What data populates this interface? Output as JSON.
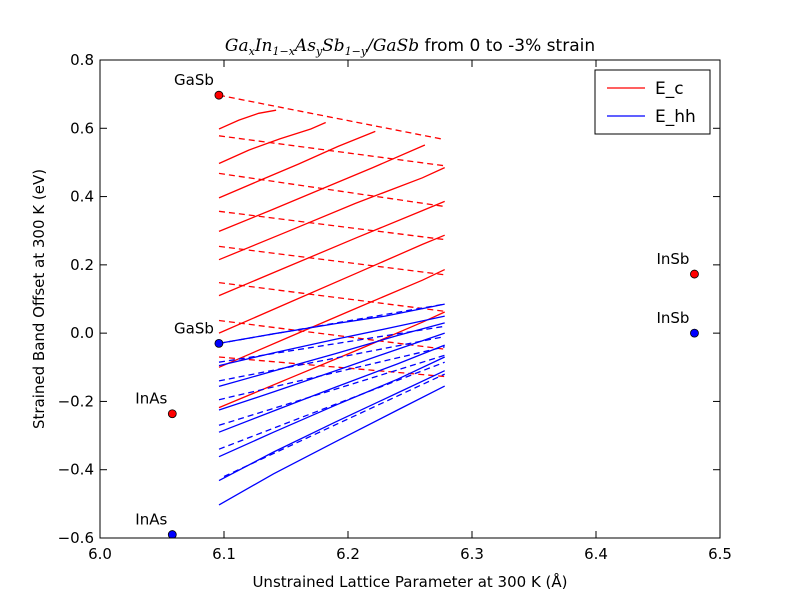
{
  "chart_data": {
    "type": "line",
    "title_math": "Ga",
    "title": {
      "parts": [
        {
          "text": "Ga",
          "style": "italic"
        },
        {
          "text": "x",
          "style": "sub"
        },
        {
          "text": "In",
          "style": "italic"
        },
        {
          "text": "1−x",
          "style": "sub"
        },
        {
          "text": "As",
          "style": "italic"
        },
        {
          "text": "y",
          "style": "sub"
        },
        {
          "text": "Sb",
          "style": "italic"
        },
        {
          "text": "1−y",
          "style": "sub"
        },
        {
          "text": "/GaSb",
          "style": "italic"
        },
        {
          "text": " from 0 to -3% strain",
          "style": "normal"
        }
      ]
    },
    "xlabel": "Unstrained Lattice Parameter at 300 K (Å)",
    "ylabel": "Strained Band Offset at 300 K (eV)",
    "xlim": [
      6.0,
      6.5
    ],
    "ylim": [
      -0.6,
      0.8
    ],
    "xticks": [
      "6.0",
      "6.1",
      "6.2",
      "6.3",
      "6.4",
      "6.5"
    ],
    "yticks": [
      "−0.6",
      "−0.4",
      "−0.2",
      "0.0",
      "0.2",
      "0.4",
      "0.6",
      "0.8"
    ],
    "grid": false,
    "legend": {
      "placement": "top-right",
      "entries": [
        {
          "label": "E_c",
          "color": "#ff0000"
        },
        {
          "label": "E_hh",
          "color": "#0000ff"
        }
      ]
    },
    "colors": {
      "ec": "#ff0000",
      "ehh": "#0000ff"
    },
    "points": [
      {
        "label": "GaSb",
        "x": 6.0959,
        "y": 0.697,
        "color": "#ff0000",
        "anchor": "left-above"
      },
      {
        "label": "GaSb",
        "x": 6.0959,
        "y": -0.03,
        "color": "#0000ff",
        "anchor": "left-above"
      },
      {
        "label": "InAs",
        "x": 6.0583,
        "y": -0.236,
        "color": "#ff0000",
        "anchor": "left-above"
      },
      {
        "label": "InAs",
        "x": 6.0583,
        "y": -0.59,
        "color": "#0000ff",
        "anchor": "left-above"
      },
      {
        "label": "InSb",
        "x": 6.4794,
        "y": 0.173,
        "color": "#ff0000",
        "anchor": "left-above"
      },
      {
        "label": "InSb",
        "x": 6.4794,
        "y": 0.0,
        "color": "#0000ff",
        "anchor": "left-above"
      }
    ],
    "series": [
      {
        "group": "ec",
        "dashed": false,
        "x": [
          6.096,
          6.112,
          6.128,
          6.142
        ],
        "y": [
          0.598,
          0.624,
          0.644,
          0.653
        ]
      },
      {
        "group": "ec",
        "dashed": false,
        "x": [
          6.096,
          6.12,
          6.145,
          6.17,
          6.182
        ],
        "y": [
          0.497,
          0.536,
          0.569,
          0.598,
          0.617
        ]
      },
      {
        "group": "ec",
        "dashed": false,
        "x": [
          6.096,
          6.128,
          6.16,
          6.192,
          6.222
        ],
        "y": [
          0.396,
          0.446,
          0.495,
          0.547,
          0.591
        ]
      },
      {
        "group": "ec",
        "dashed": false,
        "x": [
          6.096,
          6.137,
          6.178,
          6.22,
          6.262
        ],
        "y": [
          0.298,
          0.359,
          0.421,
          0.485,
          0.551
        ]
      },
      {
        "group": "ec",
        "dashed": false,
        "x": [
          6.096,
          6.151,
          6.206,
          6.26,
          6.278
        ],
        "y": [
          0.215,
          0.297,
          0.38,
          0.455,
          0.485
        ]
      },
      {
        "group": "ec",
        "dashed": false,
        "x": [
          6.096,
          6.151,
          6.206,
          6.26,
          6.278
        ],
        "y": [
          0.11,
          0.194,
          0.278,
          0.359,
          0.386
        ]
      },
      {
        "group": "ec",
        "dashed": false,
        "x": [
          6.096,
          6.151,
          6.206,
          6.26,
          6.278
        ],
        "y": [
          0.0,
          0.087,
          0.174,
          0.26,
          0.287
        ]
      },
      {
        "group": "ec",
        "dashed": false,
        "x": [
          6.096,
          6.151,
          6.206,
          6.26,
          6.278
        ],
        "y": [
          -0.1,
          -0.014,
          0.072,
          0.155,
          0.186
        ]
      },
      {
        "group": "ec",
        "dashed": false,
        "x": [
          6.096,
          6.151,
          6.206,
          6.26,
          6.278
        ],
        "y": [
          -0.218,
          -0.135,
          -0.052,
          0.032,
          0.062
        ]
      },
      {
        "group": "ec",
        "dashed": true,
        "x": [
          6.096,
          6.278
        ],
        "y": [
          0.697,
          0.567
        ]
      },
      {
        "group": "ec",
        "dashed": true,
        "x": [
          6.096,
          6.278
        ],
        "y": [
          0.578,
          0.49
        ]
      },
      {
        "group": "ec",
        "dashed": true,
        "x": [
          6.096,
          6.278
        ],
        "y": [
          0.468,
          0.371
        ]
      },
      {
        "group": "ec",
        "dashed": true,
        "x": [
          6.096,
          6.278
        ],
        "y": [
          0.357,
          0.274
        ]
      },
      {
        "group": "ec",
        "dashed": true,
        "x": [
          6.096,
          6.278
        ],
        "y": [
          0.254,
          0.171
        ]
      },
      {
        "group": "ec",
        "dashed": true,
        "x": [
          6.096,
          6.278
        ],
        "y": [
          0.148,
          0.064
        ]
      },
      {
        "group": "ec",
        "dashed": true,
        "x": [
          6.096,
          6.278
        ],
        "y": [
          0.037,
          -0.047
        ]
      },
      {
        "group": "ec",
        "dashed": true,
        "x": [
          6.096,
          6.278
        ],
        "y": [
          -0.07,
          -0.127
        ]
      },
      {
        "group": "ehh",
        "dashed": false,
        "x": [
          6.096,
          6.14,
          6.19,
          6.23,
          6.278
        ],
        "y": [
          -0.03,
          -0.002,
          0.028,
          0.05,
          0.085
        ]
      },
      {
        "group": "ehh",
        "dashed": false,
        "x": [
          6.096,
          6.14,
          6.19,
          6.24,
          6.278
        ],
        "y": [
          -0.095,
          -0.058,
          -0.018,
          0.02,
          0.05
        ]
      },
      {
        "group": "ehh",
        "dashed": false,
        "x": [
          6.096,
          6.14,
          6.19,
          6.24,
          6.278
        ],
        "y": [
          -0.156,
          -0.111,
          -0.06,
          -0.007,
          0.03
        ]
      },
      {
        "group": "ehh",
        "dashed": false,
        "x": [
          6.096,
          6.14,
          6.19,
          6.24,
          6.278
        ],
        "y": [
          -0.225,
          -0.172,
          -0.11,
          -0.047,
          0.0
        ]
      },
      {
        "group": "ehh",
        "dashed": false,
        "x": [
          6.096,
          6.14,
          6.19,
          6.24,
          6.278
        ],
        "y": [
          -0.29,
          -0.228,
          -0.158,
          -0.09,
          -0.035
        ]
      },
      {
        "group": "ehh",
        "dashed": false,
        "x": [
          6.096,
          6.14,
          6.19,
          6.24,
          6.278
        ],
        "y": [
          -0.362,
          -0.29,
          -0.211,
          -0.135,
          -0.07
        ]
      },
      {
        "group": "ehh",
        "dashed": false,
        "x": [
          6.096,
          6.14,
          6.19,
          6.24,
          6.278
        ],
        "y": [
          -0.432,
          -0.348,
          -0.26,
          -0.175,
          -0.11
        ]
      },
      {
        "group": "ehh",
        "dashed": false,
        "x": [
          6.096,
          6.14,
          6.19,
          6.24,
          6.278
        ],
        "y": [
          -0.503,
          -0.412,
          -0.318,
          -0.225,
          -0.155
        ]
      },
      {
        "group": "ehh",
        "dashed": true,
        "x": [
          6.096,
          6.278
        ],
        "y": [
          -0.03,
          0.085
        ]
      },
      {
        "group": "ehh",
        "dashed": true,
        "x": [
          6.096,
          6.278
        ],
        "y": [
          -0.085,
          0.02
        ]
      },
      {
        "group": "ehh",
        "dashed": true,
        "x": [
          6.096,
          6.278
        ],
        "y": [
          -0.14,
          -0.01
        ]
      },
      {
        "group": "ehh",
        "dashed": true,
        "x": [
          6.096,
          6.278
        ],
        "y": [
          -0.195,
          -0.04
        ]
      },
      {
        "group": "ehh",
        "dashed": true,
        "x": [
          6.096,
          6.278
        ],
        "y": [
          -0.27,
          -0.065
        ]
      },
      {
        "group": "ehh",
        "dashed": true,
        "x": [
          6.096,
          6.278
        ],
        "y": [
          -0.34,
          -0.085
        ]
      },
      {
        "group": "ehh",
        "dashed": true,
        "x": [
          6.1,
          6.278
        ],
        "y": [
          -0.42,
          -0.12
        ]
      }
    ]
  }
}
